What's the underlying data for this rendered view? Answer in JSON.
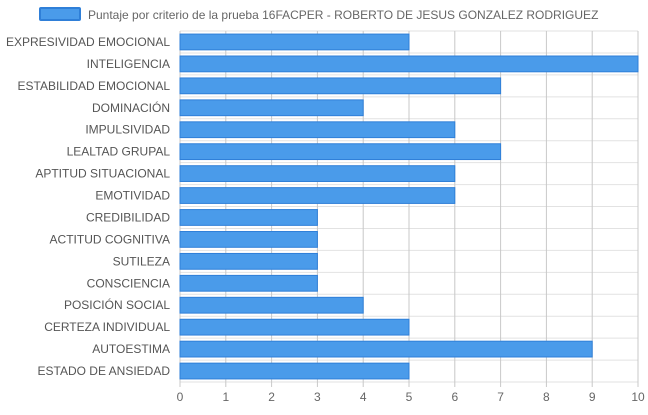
{
  "chart_data": {
    "type": "bar",
    "orientation": "horizontal",
    "categories": [
      "EXPRESIVIDAD EMOCIONAL",
      "INTELIGENCIA",
      "ESTABILIDAD EMOCIONAL",
      "DOMINACIÓN",
      "IMPULSIVIDAD",
      "LEALTAD GRUPAL",
      "APTITUD SITUACIONAL",
      "EMOTIVIDAD",
      "CREDIBILIDAD",
      "ACTITUD COGNITIVA",
      "SUTILEZA",
      "CONSCIENCIA",
      "POSICIÓN SOCIAL",
      "CERTEZA INDIVIDUAL",
      "AUTOESTIMA",
      "ESTADO DE ANSIEDAD"
    ],
    "series": [
      {
        "name": "Puntaje por criterio de la prueba 16FACPER - ROBERTO DE JESUS GONZALEZ RODRIGUEZ",
        "values": [
          5,
          10,
          7,
          4,
          6,
          7,
          6,
          6,
          3,
          3,
          3,
          3,
          4,
          5,
          9,
          5
        ],
        "color": "#4a9bea",
        "border_color": "#2f7fd8"
      }
    ],
    "xlim": [
      0,
      10
    ],
    "xticks": [
      "0",
      "1",
      "2",
      "3",
      "4",
      "5",
      "6",
      "7",
      "8",
      "9",
      "10"
    ],
    "grid": true,
    "legend_position": "top"
  }
}
